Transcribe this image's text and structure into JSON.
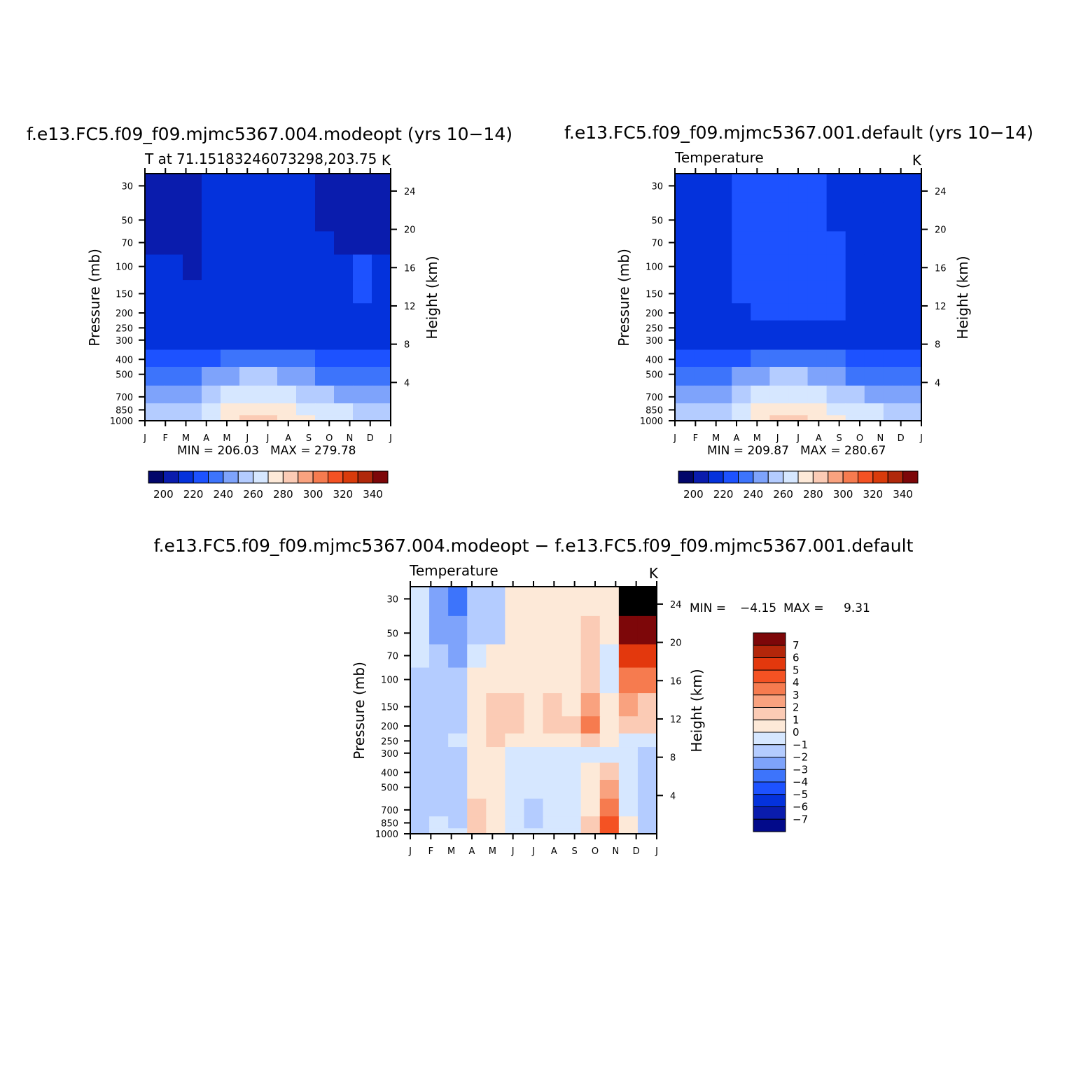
{
  "chart_data": [
    {
      "type": "heatmap",
      "title": "f.e13.FC5.f09_f09.mjmc5367.004.modeopt (yrs 10−14)",
      "left_label": "T at 71.15183246073298,203.75",
      "units": "K",
      "xlabel": "",
      "ylabel": "Pressure (mb)",
      "ylabel_right": "Height (km)",
      "x_ticks": [
        "J",
        "F",
        "M",
        "A",
        "M",
        "J",
        "J",
        "A",
        "S",
        "O",
        "N",
        "D",
        "J"
      ],
      "y_ticks": [
        "30",
        "50",
        "70",
        "100",
        "150",
        "200",
        "250",
        "300",
        "400",
        "500",
        "700",
        "850",
        "1000"
      ],
      "y_ticks_right": [
        "24",
        "20",
        "16",
        "12",
        "8",
        "4"
      ],
      "ylim": [
        1000,
        25
      ],
      "min_label": "MIN = 206.03",
      "max_label": "MAX = 279.78",
      "colorbar": {
        "orientation": "horizontal",
        "labels": [
          "200",
          "220",
          "240",
          "260",
          "280",
          "300",
          "320",
          "340"
        ]
      },
      "cells": [
        [
          1,
          1,
          1,
          2,
          2,
          2,
          2,
          2,
          2,
          1,
          1,
          1,
          1
        ],
        [
          1,
          1,
          1,
          2,
          2,
          2,
          2,
          2,
          2,
          1,
          1,
          1,
          1
        ],
        [
          1,
          1,
          1,
          2,
          2,
          2,
          2,
          2,
          2,
          2,
          1,
          1,
          1
        ],
        [
          2,
          2,
          1,
          2,
          2,
          2,
          2,
          2,
          2,
          2,
          2,
          3,
          2
        ],
        [
          2,
          2,
          2,
          2,
          2,
          2,
          2,
          2,
          2,
          2,
          2,
          3,
          2
        ],
        [
          2,
          2,
          2,
          2,
          2,
          2,
          2,
          2,
          2,
          2,
          2,
          2,
          2
        ],
        [
          2,
          2,
          2,
          2,
          2,
          2,
          2,
          2,
          2,
          2,
          2,
          2,
          2
        ],
        [
          2,
          2,
          2,
          2,
          2,
          2,
          2,
          2,
          2,
          2,
          2,
          2,
          2
        ],
        [
          3,
          3,
          3,
          3,
          4,
          4,
          4,
          4,
          4,
          3,
          3,
          3,
          3
        ],
        [
          4,
          4,
          4,
          5,
          5,
          6,
          6,
          5,
          5,
          4,
          4,
          4,
          4
        ],
        [
          5,
          5,
          5,
          6,
          7,
          7,
          7,
          7,
          6,
          6,
          5,
          5,
          5
        ],
        [
          6,
          6,
          6,
          7,
          8,
          8,
          8,
          8,
          7,
          7,
          7,
          6,
          6
        ],
        [
          6,
          6,
          6,
          7,
          8,
          9,
          9,
          8,
          8,
          7,
          7,
          6,
          6
        ]
      ]
    },
    {
      "type": "heatmap",
      "title": "f.e13.FC5.f09_f09.mjmc5367.001.default (yrs 10−14)",
      "left_label": "Temperature",
      "units": "K",
      "xlabel": "",
      "ylabel": "Pressure (mb)",
      "ylabel_right": "Height (km)",
      "x_ticks": [
        "J",
        "F",
        "M",
        "A",
        "M",
        "J",
        "J",
        "A",
        "S",
        "O",
        "N",
        "D",
        "J"
      ],
      "y_ticks": [
        "30",
        "50",
        "70",
        "100",
        "150",
        "200",
        "250",
        "300",
        "400",
        "500",
        "700",
        "850",
        "1000"
      ],
      "y_ticks_right": [
        "24",
        "20",
        "16",
        "12",
        "8",
        "4"
      ],
      "ylim": [
        1000,
        25
      ],
      "min_label": "MIN = 209.87",
      "max_label": "MAX = 280.67",
      "colorbar": {
        "orientation": "horizontal",
        "labels": [
          "200",
          "220",
          "240",
          "260",
          "280",
          "300",
          "320",
          "340"
        ]
      },
      "cells": [
        [
          2,
          2,
          2,
          3,
          3,
          3,
          3,
          3,
          2,
          2,
          2,
          2,
          2
        ],
        [
          2,
          2,
          2,
          3,
          3,
          3,
          3,
          3,
          2,
          2,
          2,
          2,
          2
        ],
        [
          2,
          2,
          2,
          3,
          3,
          3,
          3,
          3,
          3,
          2,
          2,
          2,
          2
        ],
        [
          2,
          2,
          2,
          3,
          3,
          3,
          3,
          3,
          3,
          2,
          2,
          2,
          2
        ],
        [
          2,
          2,
          2,
          3,
          3,
          3,
          3,
          3,
          3,
          2,
          2,
          2,
          2
        ],
        [
          2,
          2,
          2,
          2,
          3,
          3,
          3,
          3,
          3,
          2,
          2,
          2,
          2
        ],
        [
          2,
          2,
          2,
          2,
          2,
          2,
          2,
          2,
          2,
          2,
          2,
          2,
          2
        ],
        [
          2,
          2,
          2,
          2,
          2,
          2,
          2,
          2,
          2,
          2,
          2,
          2,
          2
        ],
        [
          3,
          3,
          3,
          3,
          4,
          4,
          4,
          4,
          4,
          3,
          3,
          3,
          3
        ],
        [
          4,
          4,
          4,
          5,
          5,
          6,
          6,
          5,
          5,
          4,
          4,
          4,
          4
        ],
        [
          5,
          5,
          5,
          6,
          7,
          7,
          7,
          7,
          6,
          6,
          5,
          5,
          5
        ],
        [
          6,
          6,
          6,
          7,
          8,
          8,
          8,
          8,
          7,
          7,
          7,
          6,
          6
        ],
        [
          6,
          6,
          6,
          7,
          8,
          9,
          9,
          8,
          8,
          7,
          7,
          6,
          6
        ]
      ]
    },
    {
      "type": "heatmap",
      "title": "f.e13.FC5.f09_f09.mjmc5367.004.modeopt − f.e13.FC5.f09_f09.mjmc5367.001.default",
      "left_label": "Temperature",
      "units": "K",
      "xlabel": "",
      "ylabel": "Pressure (mb)",
      "ylabel_right": "Height (km)",
      "x_ticks": [
        "J",
        "F",
        "M",
        "A",
        "M",
        "J",
        "J",
        "A",
        "S",
        "O",
        "N",
        "D",
        "J"
      ],
      "y_ticks": [
        "30",
        "50",
        "70",
        "100",
        "150",
        "200",
        "250",
        "300",
        "400",
        "500",
        "700",
        "850",
        "1000"
      ],
      "y_ticks_right": [
        "24",
        "20",
        "16",
        "12",
        "8",
        "4"
      ],
      "ylim": [
        1000,
        25
      ],
      "min_label": "MIN =",
      "min_value": "−4.15",
      "max_label": "MAX =",
      "max_value": "9.31",
      "colorbar": {
        "orientation": "vertical",
        "labels": [
          "7",
          "6",
          "5",
          "4",
          "3",
          "2",
          "1",
          "0",
          "−1",
          "−2",
          "−3",
          "−4",
          "−5",
          "−6",
          "−7"
        ]
      },
      "cells": [
        [
          7,
          5,
          4,
          6,
          6,
          8,
          8,
          8,
          8,
          8,
          8,
          16,
          16
        ],
        [
          7,
          5,
          5,
          6,
          6,
          8,
          8,
          8,
          8,
          9,
          8,
          15,
          15
        ],
        [
          7,
          6,
          5,
          7,
          8,
          8,
          8,
          8,
          8,
          9,
          7,
          13,
          13
        ],
        [
          6,
          6,
          6,
          8,
          8,
          8,
          8,
          8,
          8,
          9,
          7,
          11,
          11
        ],
        [
          6,
          6,
          6,
          8,
          9,
          9,
          8,
          9,
          8,
          10,
          8,
          10,
          9
        ],
        [
          6,
          6,
          6,
          8,
          9,
          9,
          8,
          9,
          9,
          11,
          8,
          9,
          9
        ],
        [
          6,
          6,
          7,
          8,
          9,
          8,
          8,
          8,
          8,
          9,
          8,
          7,
          7
        ],
        [
          6,
          6,
          6,
          8,
          8,
          7,
          7,
          7,
          7,
          7,
          7,
          7,
          6
        ],
        [
          6,
          6,
          6,
          8,
          8,
          7,
          7,
          7,
          7,
          8,
          9,
          7,
          6
        ],
        [
          6,
          6,
          6,
          8,
          8,
          7,
          7,
          7,
          7,
          8,
          10,
          7,
          6
        ],
        [
          6,
          6,
          6,
          9,
          8,
          7,
          6,
          7,
          7,
          8,
          11,
          7,
          6
        ],
        [
          6,
          7,
          6,
          9,
          8,
          7,
          6,
          7,
          7,
          9,
          12,
          8,
          6
        ],
        [
          6,
          7,
          7,
          9,
          8,
          7,
          7,
          7,
          7,
          9,
          12,
          8,
          6
        ]
      ]
    }
  ],
  "palettes": {
    "absolute": [
      "#02066a",
      "#0a1cad",
      "#0432dc",
      "#1d52ff",
      "#3d74fb",
      "#7ea3fb",
      "#b4ccff",
      "#d6e7ff",
      "#fde9d8",
      "#fbcbb5",
      "#f9a27f",
      "#f67b4f",
      "#f45223",
      "#d93b0b",
      "#b0280b",
      "#7d0709"
    ],
    "difference": [
      "#020a8a",
      "#0a1cad",
      "#0432dc",
      "#1d52ff",
      "#3d74fb",
      "#7ea3fb",
      "#b4ccff",
      "#d6e7ff",
      "#fde9d8",
      "#fbcbb5",
      "#f9a27f",
      "#f67b4f",
      "#f45223",
      "#e3380d",
      "#b3260a",
      "#7d0709"
    ]
  }
}
